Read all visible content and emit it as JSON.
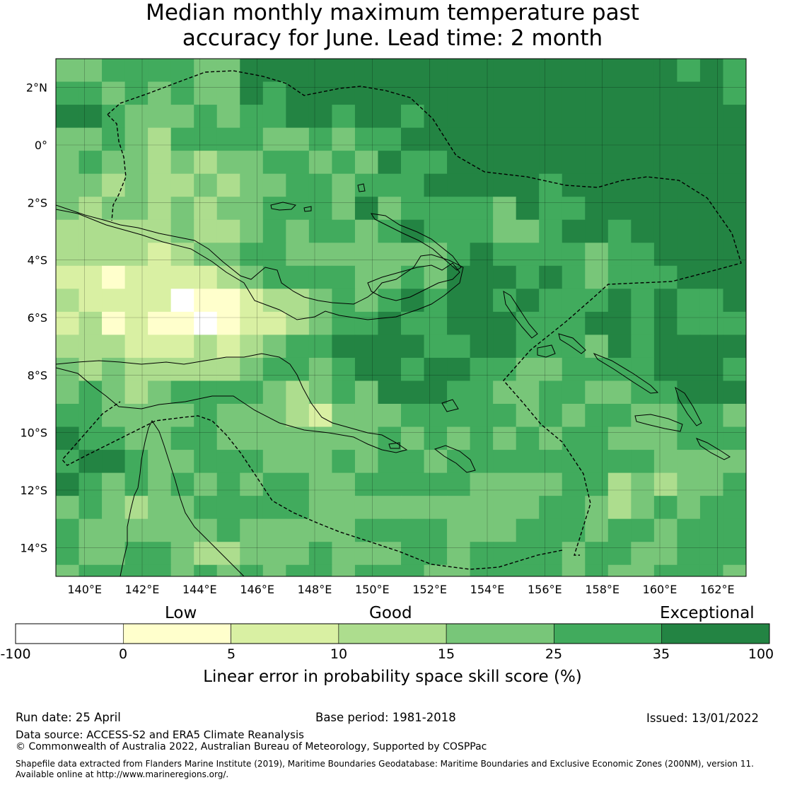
{
  "title": {
    "line1": "Median monthly maximum temperature past",
    "line2": "accuracy for June. Lead time: 2 month"
  },
  "map": {
    "lat_labels": [
      "2°N",
      "0°",
      "2°S",
      "4°S",
      "6°S",
      "8°S",
      "10°S",
      "12°S",
      "14°S"
    ],
    "lat_values": [
      2,
      0,
      -2,
      -4,
      -6,
      -8,
      -10,
      -12,
      -14
    ],
    "lon_labels": [
      "140°E",
      "142°E",
      "144°E",
      "146°E",
      "148°E",
      "150°E",
      "152°E",
      "154°E",
      "156°E",
      "158°E",
      "160°E",
      "162°E"
    ],
    "lon_values": [
      140,
      142,
      144,
      146,
      148,
      150,
      152,
      154,
      156,
      158,
      160,
      162
    ],
    "lon_range": [
      139,
      163
    ],
    "lat_range": [
      -15,
      3
    ],
    "cell_size_deg": 0.8
  },
  "colorbar": {
    "categories": [
      "Low",
      "Good",
      "Exceptional"
    ],
    "ticks": [
      "-100",
      "0",
      "5",
      "10",
      "15",
      "25",
      "35",
      "100"
    ],
    "colors": [
      "#ffffff",
      "#ffffcc",
      "#d9f0a3",
      "#addd8e",
      "#78c679",
      "#41ab5d",
      "#238443"
    ],
    "label": "Linear error in probability space skill score (%)"
  },
  "footer": {
    "run_date": "Run date: 25 April",
    "base_period": "Base period: 1981-2018",
    "issued": "Issued: 13/01/2022",
    "data_source": "Data source: ACCESS-S2 and ERA5 Climate Reanalysis",
    "copyright": "© Commonwealth of Australia 2022, Australian Bureau of Meteorology, Supported by COSPPac",
    "shapefile_line1": "Shapefile data extracted from Flanders Marine Institute (2019), Maritime Boundaries Geodatabase: Maritime Boundaries and Exclusive Economic Zones (200NM), version 11.",
    "shapefile_line2": "Available online at http://www.marineregions.org/."
  }
}
